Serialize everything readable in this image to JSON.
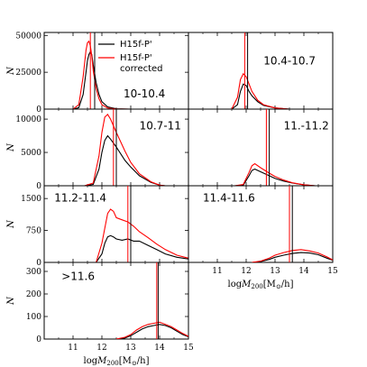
{
  "chart_data": {
    "type": "line",
    "x_range": [
      10,
      15
    ],
    "legend": {
      "placement": "top-right of first panel",
      "entries": [
        {
          "label": "H15f-P'",
          "color": "#000000"
        },
        {
          "label_lines": [
            "H15f-P'",
            "corrected"
          ],
          "color": "#ff0000"
        }
      ]
    },
    "xlabel_parts": {
      "pre": "log",
      "var": "M",
      "sub": "200",
      "post_open": "[M",
      "sun": "⊙",
      "post_close": "/h]"
    },
    "ylabel": "N",
    "x_tick_labels": [
      "11",
      "12",
      "13",
      "14",
      "15"
    ],
    "panels": [
      {
        "label": "10-10.4",
        "ylim": [
          0,
          52000
        ],
        "yticks": [
          0,
          25000,
          50000
        ],
        "ytick_labels": [
          "0",
          "25000",
          "50000"
        ],
        "vlines": {
          "black": 11.75,
          "red": 11.6
        },
        "x": [
          11.0,
          11.2,
          11.35,
          11.45,
          11.5,
          11.55,
          11.6,
          11.65,
          11.7,
          11.8,
          11.9,
          12.0,
          12.2,
          12.5,
          13.0
        ],
        "series": [
          {
            "name": "H15f-P'",
            "color": "#000000",
            "values": [
              0,
              1000,
              10000,
              25000,
              33000,
              37000,
              39000,
              37000,
              30000,
              18000,
              10000,
              5000,
              1500,
              200,
              0
            ]
          },
          {
            "name": "H15f-P' corrected",
            "color": "#ff0000",
            "values": [
              0,
              3000,
              22000,
              40000,
              45000,
              46000,
              43000,
              36000,
              26000,
              14000,
              7000,
              3000,
              700,
              100,
              0
            ]
          }
        ]
      },
      {
        "label": "10.4-10.7",
        "ylim": [
          0,
          52000
        ],
        "yticks": [],
        "ytick_labels": [],
        "vlines": {
          "black": 12.05,
          "red": 11.95
        },
        "x": [
          11.3,
          11.5,
          11.7,
          11.8,
          11.9,
          12.0,
          12.1,
          12.2,
          12.4,
          12.6,
          13.0,
          13.5
        ],
        "series": [
          {
            "name": "H15f-P'",
            "color": "#000000",
            "values": [
              0,
              0,
              3000,
              12000,
              17000,
              16000,
              12000,
              9000,
              5000,
              2500,
              800,
              0
            ]
          },
          {
            "name": "H15f-P' corrected",
            "color": "#ff0000",
            "values": [
              0,
              0,
              8000,
              20000,
              24000,
              22000,
              17000,
              12000,
              6000,
              3000,
              800,
              0
            ]
          }
        ]
      },
      {
        "label": "10.7-11",
        "ylim": [
          0,
          11500
        ],
        "yticks": [
          0,
          5000,
          10000
        ],
        "ytick_labels": [
          "0",
          "5000",
          "10000"
        ],
        "vlines": {
          "black": 12.5,
          "red": 12.4
        },
        "x": [
          11.4,
          11.7,
          11.9,
          12.0,
          12.1,
          12.2,
          12.3,
          12.5,
          12.8,
          13.0,
          13.3,
          13.7,
          14.0,
          14.2
        ],
        "series": [
          {
            "name": "H15f-P'",
            "color": "#000000",
            "values": [
              0,
              200,
              2500,
              5000,
              6800,
              7500,
              7000,
              5800,
              3800,
              2800,
              1500,
              500,
              100,
              0
            ]
          },
          {
            "name": "H15f-P' corrected",
            "color": "#ff0000",
            "values": [
              0,
              400,
              4500,
              8000,
              10300,
              10700,
              10000,
              8000,
              5200,
              3500,
              1800,
              600,
              100,
              0
            ]
          }
        ]
      },
      {
        "label": "11.-11.2",
        "ylim": [
          0,
          11500
        ],
        "yticks": [],
        "ytick_labels": [],
        "vlines": {
          "black": 12.8,
          "red": 12.7
        },
        "x": [
          11.6,
          11.9,
          12.1,
          12.2,
          12.3,
          12.5,
          12.8,
          13.0,
          13.3,
          13.6,
          14.0,
          14.4
        ],
        "series": [
          {
            "name": "H15f-P'",
            "color": "#000000",
            "values": [
              0,
              100,
              1500,
              2300,
              2500,
              2100,
              1500,
              1100,
              700,
              400,
              150,
              0
            ]
          },
          {
            "name": "H15f-P' corrected",
            "color": "#ff0000",
            "values": [
              0,
              200,
              2000,
              3000,
              3300,
              2700,
              1900,
              1400,
              850,
              450,
              150,
              0
            ]
          }
        ]
      },
      {
        "label": "11.2-11.4",
        "ylim": [
          0,
          1800
        ],
        "yticks": [
          0,
          750,
          1500
        ],
        "ytick_labels": [
          "0",
          "750",
          "1500"
        ],
        "vlines": {
          "black": 13.0,
          "red": 12.9
        },
        "x": [
          11.8,
          12.0,
          12.1,
          12.2,
          12.3,
          12.4,
          12.5,
          12.7,
          12.9,
          13.1,
          13.3,
          13.6,
          13.9,
          14.2,
          14.6,
          15.0
        ],
        "series": [
          {
            "name": "H15f-P'",
            "color": "#000000",
            "values": [
              0,
              200,
              450,
              600,
              630,
              600,
              550,
              520,
              550,
              500,
              500,
              400,
              300,
              200,
              120,
              80
            ]
          },
          {
            "name": "H15f-P' corrected",
            "color": "#ff0000",
            "values": [
              0,
              450,
              800,
              1150,
              1250,
              1200,
              1050,
              1000,
              950,
              850,
              720,
              580,
              430,
              300,
              170,
              100
            ]
          }
        ]
      },
      {
        "label": "11.4-11.6",
        "ylim": [
          0,
          1800
        ],
        "yticks": [],
        "ytick_labels": [],
        "vlines": {
          "black": 13.6,
          "red": 13.5
        },
        "x": [
          12.2,
          12.5,
          12.8,
          13.0,
          13.3,
          13.6,
          13.9,
          14.2,
          14.5,
          14.8,
          15.0
        ],
        "series": [
          {
            "name": "H15f-P'",
            "color": "#000000",
            "values": [
              0,
              20,
              70,
              120,
              170,
              210,
              230,
              220,
              180,
              100,
              50
            ]
          },
          {
            "name": "H15f-P' corrected",
            "color": "#ff0000",
            "values": [
              0,
              30,
              100,
              170,
              230,
              280,
              300,
              270,
              220,
              130,
              60
            ]
          }
        ]
      },
      {
        "label": ">11.6",
        "ylim": [
          0,
          340
        ],
        "yticks": [
          0,
          100,
          200,
          300
        ],
        "ytick_labels": [
          "0",
          "100",
          "200",
          "300"
        ],
        "vlines": {
          "black": 13.95,
          "red": 13.9
        },
        "x": [
          12.5,
          12.8,
          13.0,
          13.2,
          13.4,
          13.6,
          13.8,
          14.0,
          14.2,
          14.4,
          14.6,
          14.8,
          15.0
        ],
        "series": [
          {
            "name": "H15f-P'",
            "color": "#000000",
            "values": [
              0,
              5,
              15,
              30,
              45,
              55,
              60,
              65,
              60,
              50,
              35,
              20,
              10
            ]
          },
          {
            "name": "H15f-P' corrected",
            "color": "#ff0000",
            "values": [
              0,
              8,
              20,
              40,
              55,
              65,
              70,
              75,
              65,
              55,
              40,
              25,
              12
            ]
          }
        ]
      }
    ]
  }
}
